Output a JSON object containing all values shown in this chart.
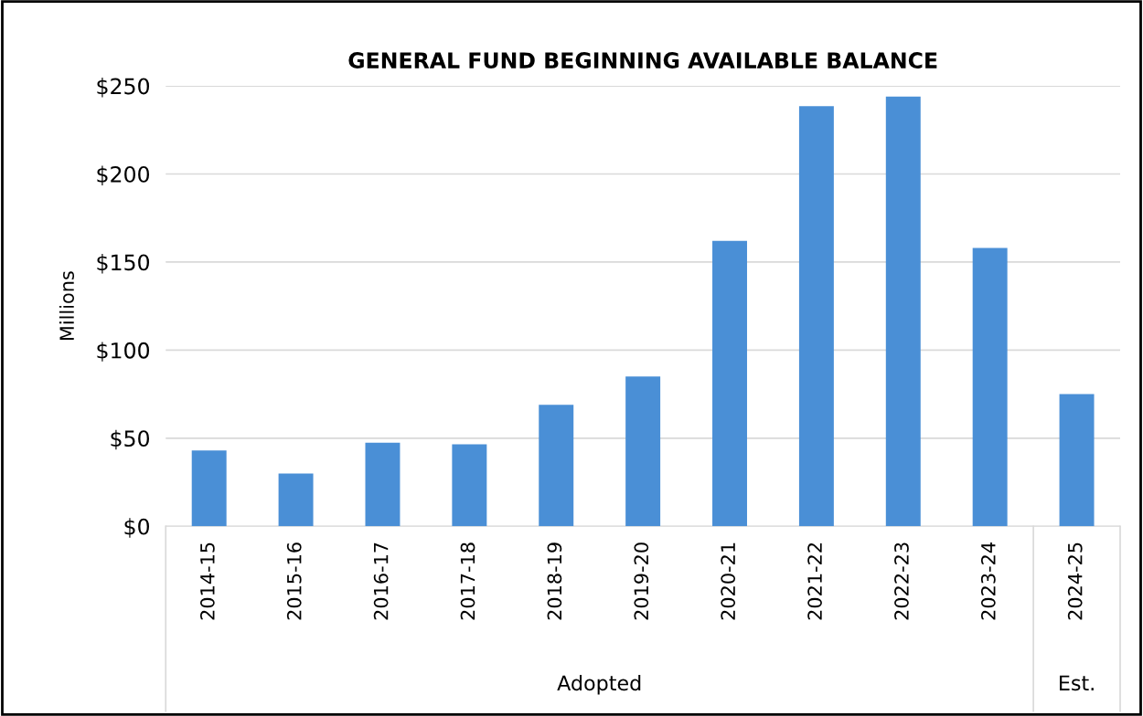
{
  "chart_data": {
    "type": "bar",
    "title": "GENERAL FUND BEGINNING AVAILABLE BALANCE",
    "ylabel": "Millions",
    "categories": [
      "2014-15",
      "2015-16",
      "2016-17",
      "2017-18",
      "2018-19",
      "2019-20",
      "2020-21",
      "2021-22",
      "2022-23",
      "2023-24",
      "2024-25"
    ],
    "values": [
      43,
      30,
      47.5,
      46.5,
      69,
      85,
      162,
      238.5,
      244,
      158,
      75
    ],
    "color": "#4a8fd6",
    "ylim": [
      0,
      250
    ],
    "yticks": [
      {
        "value": 0,
        "label": "$0"
      },
      {
        "value": 50,
        "label": "$50"
      },
      {
        "value": 100,
        "label": "$100"
      },
      {
        "value": 150,
        "label": "$150"
      },
      {
        "value": 200,
        "label": "$200"
      },
      {
        "value": 250,
        "label": "$250"
      }
    ],
    "grid": "y",
    "annotations": [
      "Adopted",
      "Est."
    ]
  }
}
